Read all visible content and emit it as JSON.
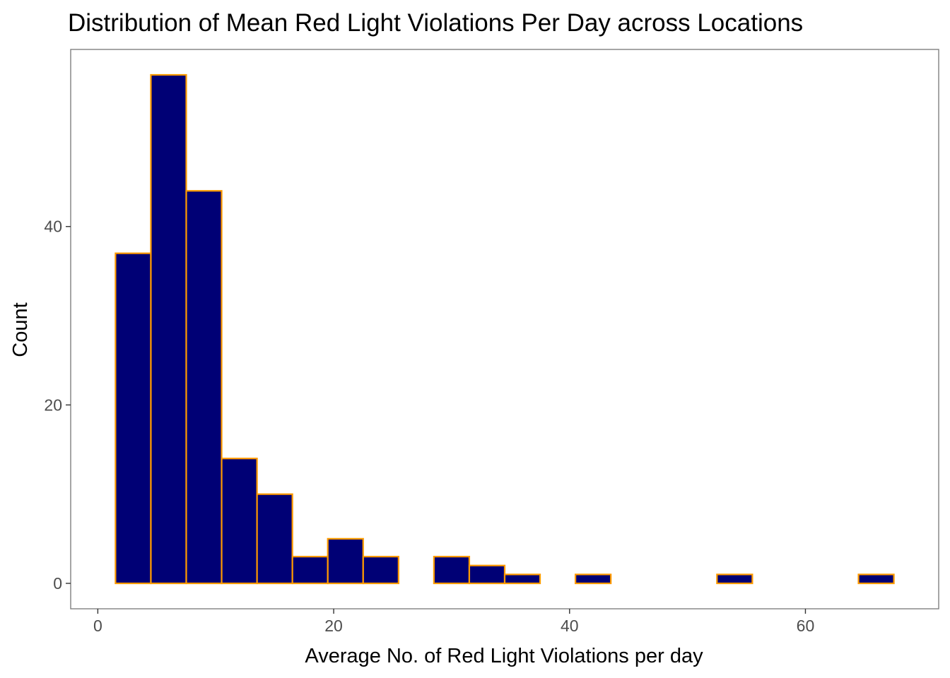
{
  "chart_data": {
    "type": "bar",
    "title": "Distribution of Mean Red Light Violations Per Day across Locations",
    "xlabel": "Average No. of Red Light Violations per day",
    "ylabel": "Count",
    "bin_width": 3,
    "bins": [
      {
        "x_start": 1.5,
        "x_end": 4.5,
        "count": 37
      },
      {
        "x_start": 4.5,
        "x_end": 7.5,
        "count": 57
      },
      {
        "x_start": 7.5,
        "x_end": 10.5,
        "count": 44
      },
      {
        "x_start": 10.5,
        "x_end": 13.5,
        "count": 14
      },
      {
        "x_start": 13.5,
        "x_end": 16.5,
        "count": 10
      },
      {
        "x_start": 16.5,
        "x_end": 19.5,
        "count": 3
      },
      {
        "x_start": 19.5,
        "x_end": 22.5,
        "count": 5
      },
      {
        "x_start": 22.5,
        "x_end": 25.5,
        "count": 3
      },
      {
        "x_start": 25.5,
        "x_end": 28.5,
        "count": 0
      },
      {
        "x_start": 28.5,
        "x_end": 31.5,
        "count": 3
      },
      {
        "x_start": 31.5,
        "x_end": 34.5,
        "count": 2
      },
      {
        "x_start": 34.5,
        "x_end": 37.5,
        "count": 1
      },
      {
        "x_start": 37.5,
        "x_end": 40.5,
        "count": 0
      },
      {
        "x_start": 40.5,
        "x_end": 43.5,
        "count": 1
      },
      {
        "x_start": 43.5,
        "x_end": 46.5,
        "count": 0
      },
      {
        "x_start": 46.5,
        "x_end": 49.5,
        "count": 0
      },
      {
        "x_start": 49.5,
        "x_end": 52.5,
        "count": 0
      },
      {
        "x_start": 52.5,
        "x_end": 55.5,
        "count": 1
      },
      {
        "x_start": 55.5,
        "x_end": 58.5,
        "count": 0
      },
      {
        "x_start": 58.5,
        "x_end": 61.5,
        "count": 0
      },
      {
        "x_start": 61.5,
        "x_end": 64.5,
        "count": 0
      },
      {
        "x_start": 64.5,
        "x_end": 67.5,
        "count": 1
      }
    ],
    "xlim": [
      -2.3,
      71.3
    ],
    "ylim": [
      -2.85,
      59.85
    ],
    "x_ticks": [
      0,
      20,
      40,
      60
    ],
    "x_tick_labels": [
      "0",
      "20",
      "40",
      "60"
    ],
    "y_ticks": [
      0,
      20,
      40
    ],
    "y_tick_labels": [
      "0",
      "20",
      "40"
    ],
    "grid": false,
    "legend": "none",
    "colors": {
      "bar_fill": "#000075",
      "bar_outline": "#FF9A00",
      "panel_border": "#7F7F7F",
      "tick_label": "#4D4D4D",
      "background": "#FFFFFF"
    }
  }
}
